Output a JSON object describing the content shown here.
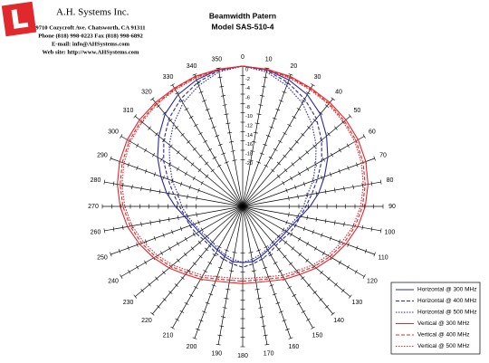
{
  "header": {
    "company": "A.H. Systems Inc.",
    "address": "9710 Cozycroft Ave. Chatsworth, CA 91311",
    "phone": "Phone (818) 998-0223 Fax (818) 998-6892",
    "email": "E-mail: info@AHSystems.com",
    "web": "Web site: http://www.AHSystems.com"
  },
  "chart_data": {
    "type": "polar",
    "title": "Beamwidth Patern",
    "subtitle": "Model SAS-510-4",
    "angles": [
      0,
      10,
      20,
      30,
      40,
      50,
      60,
      70,
      80,
      90,
      100,
      110,
      120,
      130,
      140,
      150,
      160,
      170,
      180,
      190,
      200,
      210,
      220,
      230,
      240,
      250,
      260,
      270,
      280,
      290,
      300,
      310,
      320,
      330,
      340,
      350
    ],
    "rlim": [
      -30,
      0
    ],
    "rticks": [
      0,
      -2,
      -4,
      -6,
      -8,
      -10,
      -12,
      -14,
      -16,
      -18,
      -20
    ],
    "legend": "lower right",
    "series": [
      {
        "name": "Horizontal @ 300 MHz",
        "color": "#2a2a9c",
        "dash": "solid",
        "values": [
          0,
          -0.3,
          -1.2,
          -2.4,
          -4.2,
          -6.6,
          -9,
          -11.4,
          -13.5,
          -15.6,
          -17.4,
          -18.6,
          -19.2,
          -19.5,
          -19.5,
          -19.2,
          -18.6,
          -18,
          -18,
          -18,
          -18.6,
          -19.2,
          -19.5,
          -19.5,
          -19.2,
          -18.6,
          -17.4,
          -15.6,
          -13.5,
          -11.4,
          -9,
          -6.6,
          -4.2,
          -2.4,
          -1.2,
          -0.3
        ]
      },
      {
        "name": "Horizontal @ 400 MHz",
        "color": "#2a2a9c",
        "dash": "dashed",
        "values": [
          0,
          -0.5,
          -1.8,
          -3.5,
          -5.5,
          -8,
          -10.5,
          -13,
          -15,
          -16.5,
          -17.5,
          -18,
          -18.5,
          -19,
          -19,
          -18.5,
          -18,
          -17.5,
          -17,
          -17.5,
          -18,
          -18.5,
          -19,
          -19,
          -18.5,
          -18,
          -17.5,
          -16.5,
          -15,
          -13,
          -10.5,
          -8,
          -5.5,
          -3.5,
          -1.8,
          -0.5
        ]
      },
      {
        "name": "Horizontal @ 500 MHz",
        "color": "#2a2a9c",
        "dash": "dotted",
        "values": [
          0,
          -0.8,
          -2.5,
          -4.5,
          -7,
          -9.5,
          -12,
          -14,
          -16,
          -17,
          -18,
          -19,
          -19.5,
          -20,
          -20,
          -19.5,
          -19,
          -18.5,
          -18,
          -18.5,
          -19,
          -19.5,
          -20,
          -20,
          -19.5,
          -19,
          -18,
          -17,
          -16,
          -14,
          -12,
          -9.5,
          -7,
          -4.5,
          -2.5,
          -0.8
        ]
      },
      {
        "name": "Vertical @ 300 MHz",
        "color": "#e0282d",
        "dash": "solid",
        "values": [
          0,
          -0.2,
          -0.4,
          -0.8,
          -1,
          -1.2,
          -1.5,
          -2,
          -2.8,
          -3.8,
          -5,
          -6.5,
          -8,
          -9.5,
          -11,
          -12,
          -13,
          -13.5,
          -13.5,
          -13.5,
          -13,
          -12,
          -11,
          -9.5,
          -8,
          -6.5,
          -5,
          -3.8,
          -2.8,
          -2,
          -1.5,
          -1.2,
          -1,
          -0.8,
          -0.4,
          -0.2
        ]
      },
      {
        "name": "Vertical @ 400 MHz",
        "color": "#e0282d",
        "dash": "dashed",
        "values": [
          0,
          -0.3,
          -0.6,
          -1,
          -1.3,
          -1.6,
          -2,
          -2.6,
          -3.4,
          -4.4,
          -5.6,
          -7,
          -8.5,
          -10,
          -11.5,
          -12.5,
          -13.5,
          -14,
          -14,
          -14,
          -13.5,
          -12.5,
          -11.5,
          -10,
          -8.5,
          -7,
          -5.6,
          -4.4,
          -3.4,
          -2.6,
          -2,
          -1.6,
          -1.3,
          -1,
          -0.6,
          -0.3
        ]
      },
      {
        "name": "Vertical @ 500 MHz",
        "color": "#e0282d",
        "dash": "dotted",
        "values": [
          0,
          -0.4,
          -0.8,
          -1.2,
          -1.5,
          -1.9,
          -2.3,
          -3,
          -3.8,
          -4.8,
          -6,
          -7.5,
          -9,
          -10.5,
          -12,
          -13,
          -14,
          -14.5,
          -14.5,
          -14.5,
          -14,
          -13,
          -12,
          -10.5,
          -9,
          -7.5,
          -6,
          -4.8,
          -3.8,
          -3,
          -2.3,
          -1.9,
          -1.5,
          -1.2,
          -0.8,
          -0.4
        ]
      }
    ]
  }
}
